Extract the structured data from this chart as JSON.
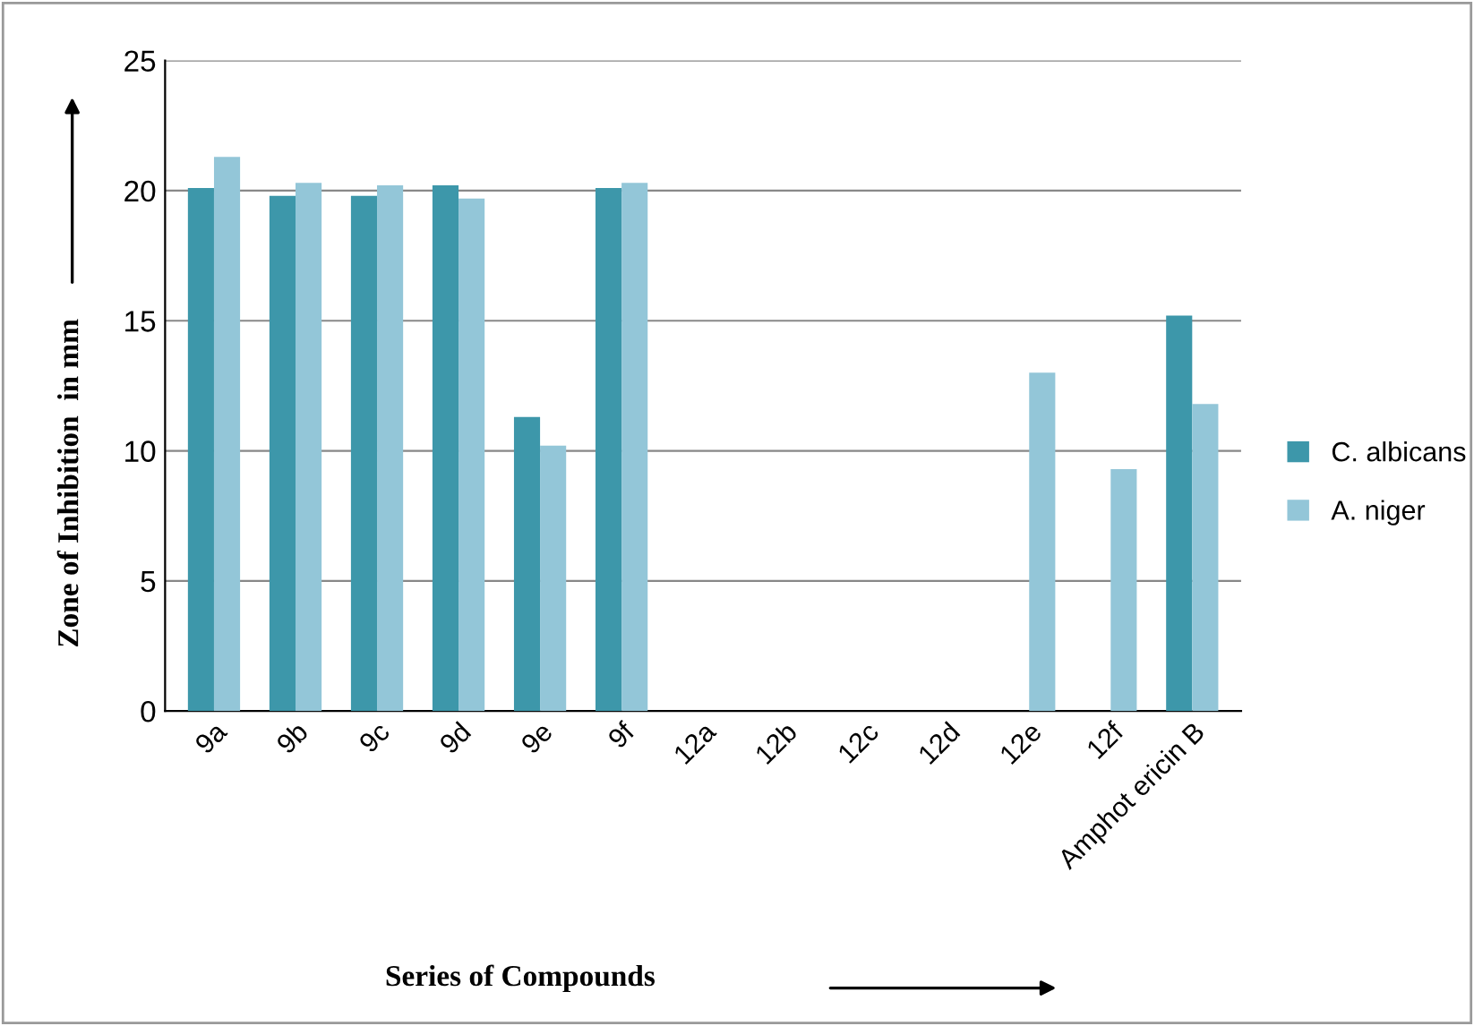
{
  "chart_data": {
    "type": "bar",
    "xlabel": "Series of Compounds",
    "ylabel": "Zone of Inhibition  in mm",
    "categories": [
      "9a",
      "9b",
      "9c",
      "9d",
      "9e",
      "9f",
      "12a",
      "12b",
      "12c",
      "12d",
      "12e",
      "12f",
      "Amphot ericin B"
    ],
    "series": [
      {
        "name": "C. albicans",
        "color": "#3d97aa",
        "values": [
          20.1,
          19.8,
          19.8,
          20.2,
          11.3,
          20.1,
          0,
          0,
          0,
          0,
          0,
          0,
          15.2
        ]
      },
      {
        "name": "A. niger",
        "color": "#93c6d8",
        "values": [
          21.3,
          20.3,
          20.2,
          19.7,
          10.2,
          20.3,
          0,
          0,
          0,
          0,
          13.0,
          9.3,
          11.8
        ]
      }
    ],
    "ylim": [
      0,
      25
    ],
    "yticks": [
      0,
      5,
      10,
      15,
      20,
      25
    ],
    "grid": "y",
    "legend": "right"
  }
}
